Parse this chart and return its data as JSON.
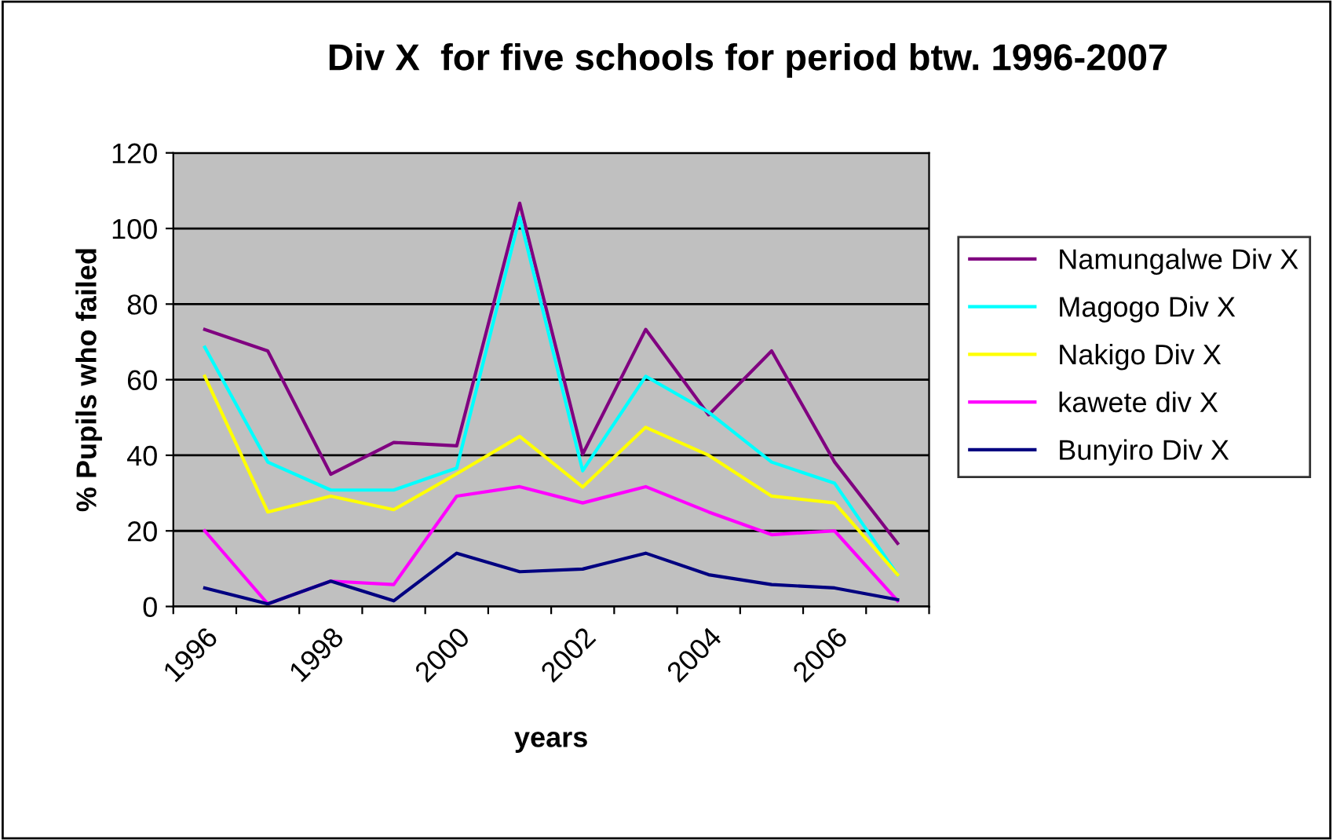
{
  "chart_data": {
    "type": "line",
    "title": "Div X  for five schools for period btw. 1996-2007",
    "xlabel": "years",
    "ylabel": "% Pupils who failed",
    "categories": [
      "1996",
      null,
      "1998",
      null,
      "2000",
      null,
      "2002",
      null,
      "2004",
      null,
      "2006",
      null
    ],
    "series": [
      {
        "name": "Namungalwe Div X",
        "color": "#800080",
        "values": [
          73.3,
          67.6,
          35,
          43.4,
          42.5,
          106.7,
          40.3,
          73.3,
          50.7,
          67.6,
          38.2,
          16.7
        ]
      },
      {
        "name": "Magogo Div X",
        "color": "#00ffff",
        "values": [
          68.6,
          38.2,
          30.8,
          30.8,
          36.6,
          103,
          35.9,
          60.9,
          51.4,
          38.2,
          32.6,
          8.4
        ]
      },
      {
        "name": "Nakigo Div X",
        "color": "#ffff00",
        "values": [
          60.9,
          25,
          29.2,
          25.6,
          35.1,
          45,
          31.6,
          47.4,
          40,
          29.2,
          27.4,
          8.4
        ]
      },
      {
        "name": "kawete div X",
        "color": "#ff00ff",
        "values": [
          20,
          0.7,
          6.7,
          5.8,
          29.2,
          31.7,
          27.4,
          31.7,
          25,
          19,
          20,
          1.5
        ]
      },
      {
        "name": "Bunyiro Div X",
        "color": "#000080",
        "values": [
          4.9,
          0.7,
          6.7,
          1.5,
          14.1,
          9.2,
          9.9,
          14.1,
          8.4,
          5.8,
          4.9,
          1.8
        ]
      }
    ],
    "ylim": [
      0,
      120
    ],
    "yticks": [
      0,
      20,
      40,
      60,
      80,
      100,
      120
    ],
    "grid": "y",
    "legend": "right",
    "marker": "none",
    "line_style": "solid"
  }
}
